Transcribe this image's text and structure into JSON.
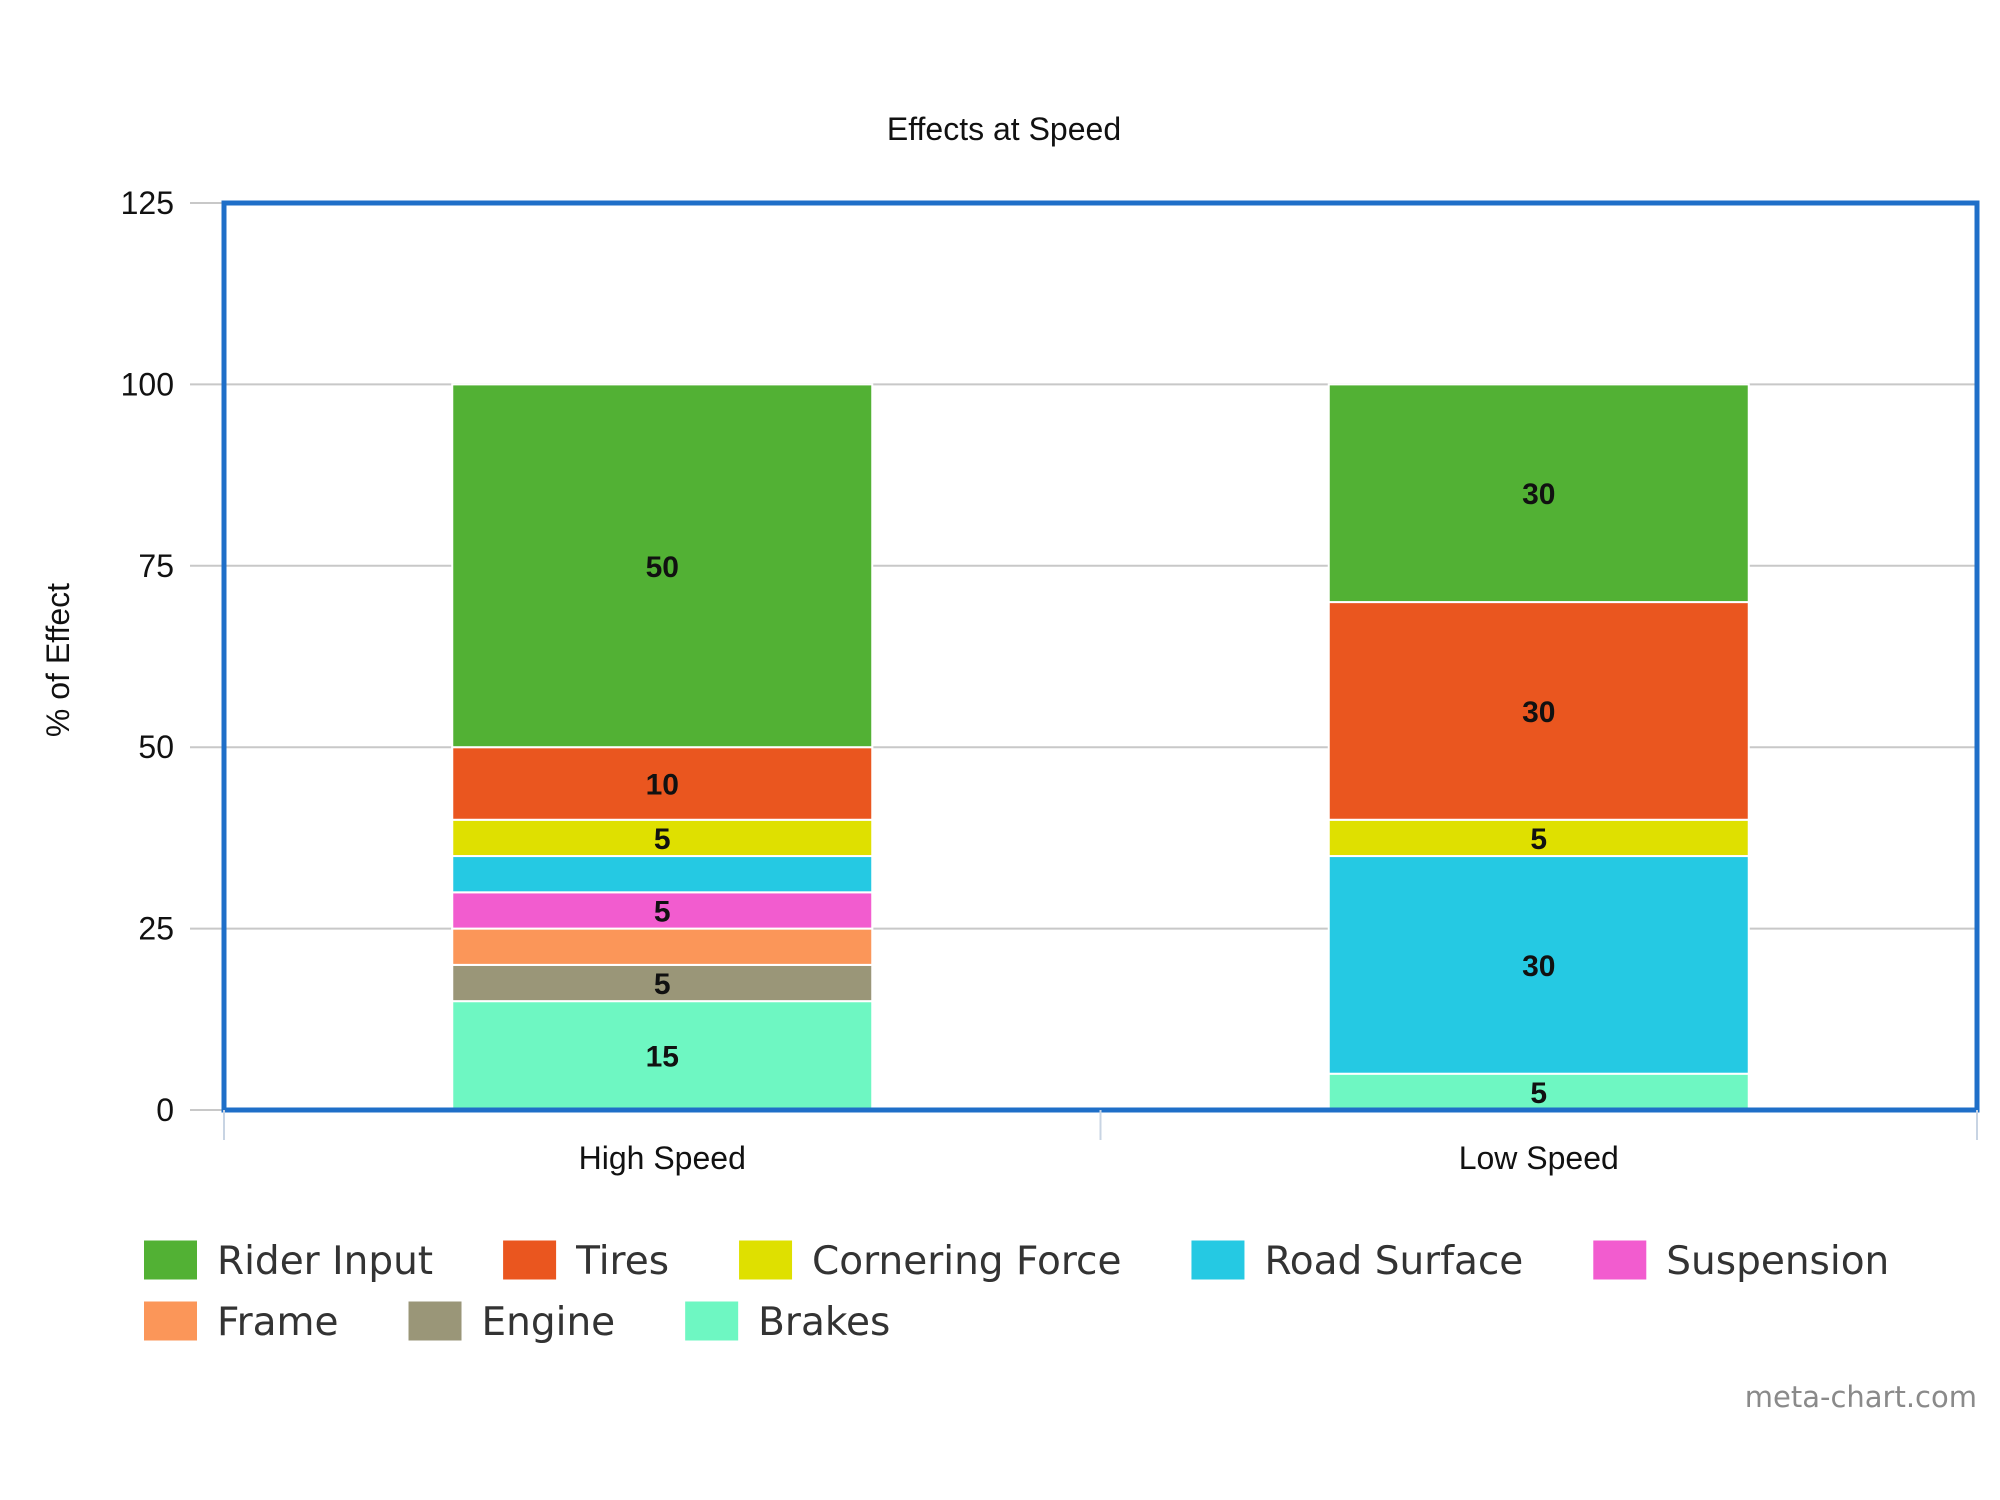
{
  "chart_data": {
    "type": "bar",
    "stacked": true,
    "title": "Effects at Speed",
    "xlabel": "",
    "ylabel": "% of Effect",
    "ylim": [
      0,
      125
    ],
    "yticks": [
      0,
      25,
      50,
      75,
      100,
      125
    ],
    "grid": true,
    "legend_position": "bottom",
    "categories": [
      "High Speed",
      "Low Speed"
    ],
    "series": [
      {
        "name": "Brakes",
        "color": "#6ef7c2",
        "values": [
          15,
          5
        ],
        "labels": [
          "15",
          "5"
        ]
      },
      {
        "name": "Engine",
        "color": "#9a9678",
        "values": [
          5,
          0
        ],
        "labels": [
          "5",
          ""
        ]
      },
      {
        "name": "Frame",
        "color": "#fb9659",
        "values": [
          5,
          0
        ],
        "labels": [
          "",
          ""
        ]
      },
      {
        "name": "Suspension",
        "color": "#f25ccf",
        "values": [
          5,
          0
        ],
        "labels": [
          "5",
          ""
        ]
      },
      {
        "name": "Road Surface",
        "color": "#25c9e3",
        "values": [
          5,
          30
        ],
        "labels": [
          "",
          "30"
        ]
      },
      {
        "name": "Cornering Force",
        "color": "#dfe000",
        "values": [
          5,
          5
        ],
        "labels": [
          "5",
          "5"
        ]
      },
      {
        "name": "Tires",
        "color": "#ea561f",
        "values": [
          10,
          30
        ],
        "labels": [
          "10",
          "30"
        ]
      },
      {
        "name": "Rider Input",
        "color": "#52b134",
        "values": [
          50,
          30
        ],
        "labels": [
          "50",
          "30"
        ]
      }
    ],
    "legend_order": [
      "Rider Input",
      "Tires",
      "Cornering Force",
      "Road Surface",
      "Suspension",
      "Frame",
      "Engine",
      "Brakes"
    ],
    "plot_border_color": "#1f6fc8"
  },
  "credit": "meta-chart.com"
}
